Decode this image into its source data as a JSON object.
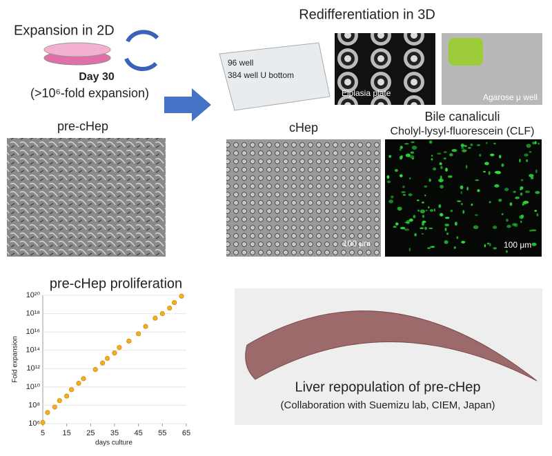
{
  "expansion": {
    "title": "Expansion in 2D",
    "day": "Day 30",
    "fold": "(>10⁶-fold expansion)"
  },
  "redifferentiation": {
    "title": "Redifferentiation in 3D",
    "plate_96": "96 well",
    "plate_384": "384 well U bottom",
    "elplasia": "Elplasia plate",
    "agarose": "Agarose μ well"
  },
  "images": {
    "pre_chep": "pre-cHep",
    "chep": "cHep",
    "bile_title": "Bile canaliculi",
    "bile_subtitle": "Cholyl-lysyl-fluorescein (CLF)",
    "scale_chep": "100 μm",
    "scale_clf": "100 μm"
  },
  "liver": {
    "title": "Liver repopulation of pre-cHep",
    "note": "(Collaboration with Suemizu lab, CIEM, Japan)"
  },
  "chart_data": {
    "type": "scatter",
    "title": "pre-cHep proliferation",
    "x_label": "days culture",
    "y_label": "Fold expansion",
    "log_y": true,
    "color": "#f0b020",
    "x": [
      5,
      7,
      10,
      12,
      15,
      17,
      20,
      22,
      27,
      30,
      32,
      35,
      37,
      41,
      45,
      48,
      52,
      55,
      58,
      60,
      63
    ],
    "values": [
      1300000.0,
      16000000.0,
      63000000.0,
      320000000.0,
      1000000000.0,
      5000000000.0,
      25000000000.0,
      80000000000.0,
      800000000000.0,
      4000000000000.0,
      13000000000000.0,
      50000000000000.0,
      200000000000000.0,
      1000000000000000.0,
      6300000000000000.0,
      4e+16,
      3.2e+17,
      1e+18,
      4e+18,
      1.6e+19,
      8e+19
    ],
    "xlim": [
      5,
      65
    ],
    "xticks": [
      5,
      15,
      25,
      35,
      45,
      55,
      65
    ],
    "ylim": [
      1000000.0,
      1e+20
    ],
    "yticks": [
      {
        "value": 1000000.0,
        "label": "10⁶"
      },
      {
        "value": 100000000.0,
        "label": "10⁸"
      },
      {
        "value": 10000000000.0,
        "label": "10¹⁰"
      },
      {
        "value": 1000000000000.0,
        "label": "10¹²"
      },
      {
        "value": 100000000000000.0,
        "label": "10¹⁴"
      },
      {
        "value": 1e+16,
        "label": "10¹⁶"
      },
      {
        "value": 1e+18,
        "label": "10¹⁸"
      },
      {
        "value": 1e+20,
        "label": "10²⁰"
      }
    ]
  }
}
